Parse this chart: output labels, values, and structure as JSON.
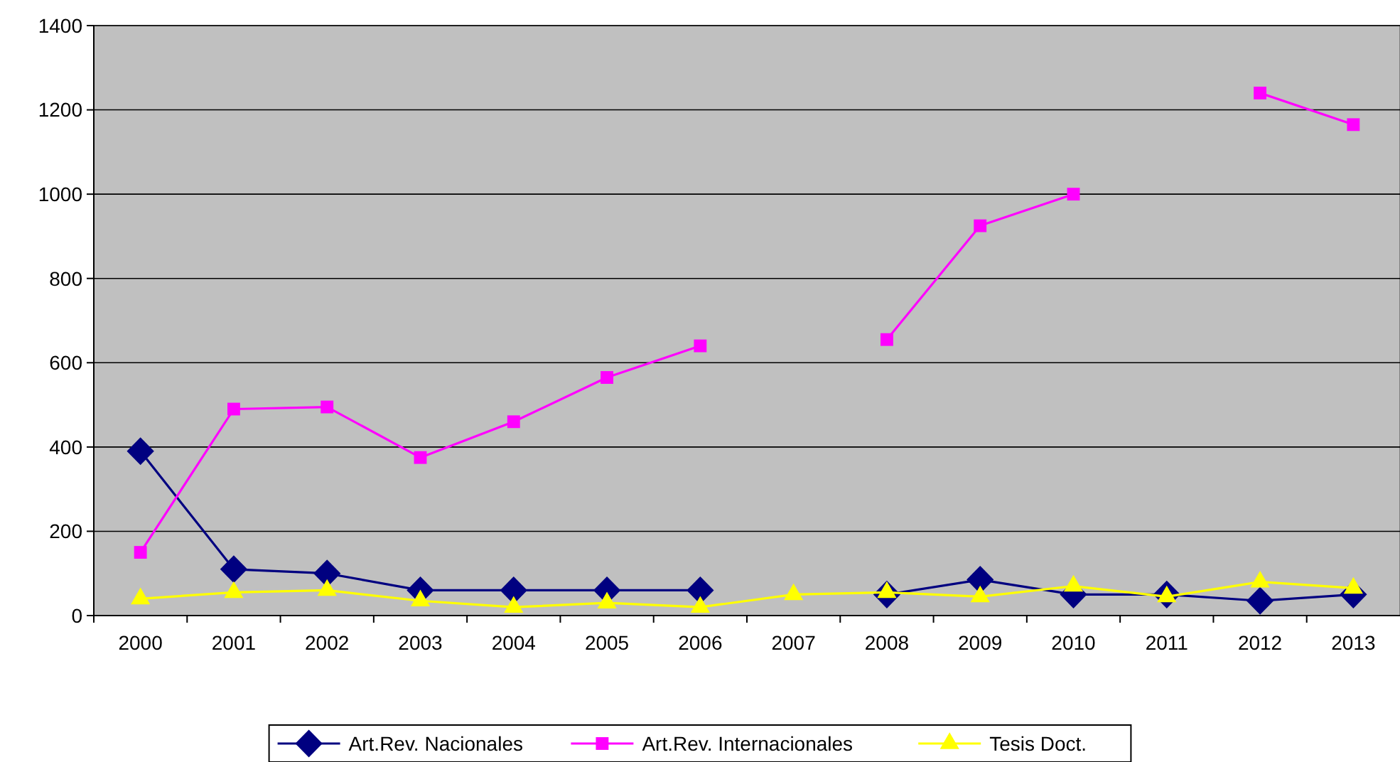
{
  "chart_data": {
    "type": "line",
    "categories": [
      "2000",
      "2001",
      "2002",
      "2003",
      "2004",
      "2005",
      "2006",
      "2007",
      "2008",
      "2009",
      "2010",
      "2011",
      "2012",
      "2013"
    ],
    "series": [
      {
        "name": "Art.Rev. Nacionales",
        "color": "#000080",
        "marker": "diamond",
        "values": [
          390,
          110,
          100,
          60,
          60,
          60,
          60,
          null,
          50,
          85,
          50,
          50,
          35,
          50
        ]
      },
      {
        "name": "Art.Rev. Internacionales",
        "color": "#ff00ff",
        "marker": "square",
        "values": [
          150,
          490,
          495,
          375,
          460,
          565,
          640,
          null,
          655,
          925,
          1000,
          null,
          1240,
          1165
        ]
      },
      {
        "name": "Tesis Doct.",
        "color": "#ffff00",
        "marker": "triangle",
        "values": [
          40,
          55,
          60,
          35,
          20,
          30,
          20,
          50,
          55,
          45,
          70,
          45,
          80,
          65
        ]
      }
    ],
    "ylim": [
      0,
      1400
    ],
    "yticks": [
      0,
      200,
      400,
      600,
      800,
      1000,
      1200,
      1400
    ],
    "grid": "y",
    "legend": "bottom"
  }
}
